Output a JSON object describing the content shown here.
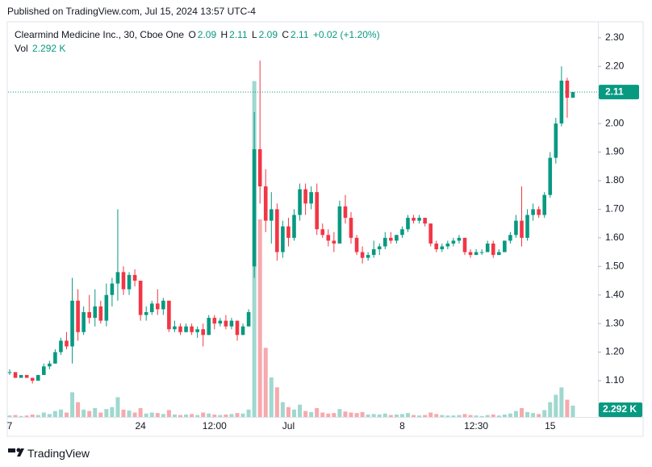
{
  "published": "Published on TradingView.com, Jul 15, 2024 13:57 UTC-4",
  "brand": "TradingView",
  "chart_data": {
    "type": "candlestick",
    "title": "Clearmind Medicine Inc., 30, Cboe One",
    "ohlc_labels": [
      "O",
      "H",
      "L",
      "C"
    ],
    "change_label": "+0.02 (+1.20%)",
    "volume_name": "Vol",
    "volume_label": "2.292 K",
    "up_color": "#089981",
    "down_color": "#f23645",
    "volume_up_color": "#9fd8cf",
    "volume_down_color": "#f7a9ae",
    "ylim": [
      0.973,
      2.356
    ],
    "yticks": [
      {
        "value": 1.1,
        "label": "1.10"
      },
      {
        "value": 1.2,
        "label": "1.20"
      },
      {
        "value": 1.3,
        "label": "1.30"
      },
      {
        "value": 1.4,
        "label": "1.40"
      },
      {
        "value": 1.5,
        "label": "1.50"
      },
      {
        "value": 1.6,
        "label": "1.60"
      },
      {
        "value": 1.7,
        "label": "1.70"
      },
      {
        "value": 1.8,
        "label": "1.80"
      },
      {
        "value": 1.9,
        "label": "1.90"
      },
      {
        "value": 2.0,
        "label": "2.00"
      },
      {
        "value": 2.1,
        "label": "2.10"
      },
      {
        "value": 2.2,
        "label": "2.20"
      },
      {
        "value": 2.3,
        "label": "2.30"
      }
    ],
    "vlim": [
      0,
      80000
    ],
    "categories": [
      "7",
      null,
      null,
      null,
      null,
      null,
      null,
      null,
      null,
      null,
      null,
      null,
      null,
      null,
      null,
      null,
      null,
      null,
      null,
      null,
      null,
      null,
      null,
      "24",
      null,
      null,
      null,
      null,
      null,
      null,
      null,
      null,
      null,
      null,
      null,
      null,
      "12:00",
      null,
      null,
      null,
      null,
      null,
      null,
      null,
      null,
      null,
      null,
      null,
      null,
      "Jul",
      null,
      null,
      null,
      null,
      null,
      null,
      null,
      null,
      null,
      null,
      null,
      null,
      null,
      null,
      null,
      null,
      null,
      null,
      null,
      "8",
      null,
      null,
      null,
      null,
      null,
      null,
      null,
      null,
      null,
      null,
      null,
      null,
      "12:30",
      null,
      null,
      null,
      null,
      null,
      null,
      null,
      null,
      null,
      null,
      null,
      null,
      "15",
      null,
      null,
      null,
      null
    ],
    "series": {
      "open": [
        1.13,
        1.13,
        1.11,
        1.12,
        1.11,
        1.1,
        1.12,
        1.15,
        1.16,
        1.2,
        1.24,
        1.22,
        1.38,
        1.27,
        1.34,
        1.32,
        1.36,
        1.31,
        1.4,
        1.44,
        1.48,
        1.42,
        1.47,
        1.45,
        1.33,
        1.34,
        1.37,
        1.35,
        1.38,
        1.28,
        1.29,
        1.27,
        1.29,
        1.27,
        1.28,
        1.26,
        1.32,
        1.3,
        1.31,
        1.29,
        1.31,
        1.26,
        1.29,
        1.5,
        1.91,
        1.78,
        1.66,
        1.7,
        1.55,
        1.64,
        1.6,
        1.68,
        1.77,
        1.72,
        1.76,
        1.63,
        1.61,
        1.59,
        1.58,
        1.71,
        1.67,
        1.6,
        1.55,
        1.53,
        1.54,
        1.56,
        1.57,
        1.6,
        1.59,
        1.61,
        1.63,
        1.67,
        1.66,
        1.67,
        1.65,
        1.58,
        1.56,
        1.57,
        1.58,
        1.59,
        1.6,
        1.55,
        1.54,
        1.55,
        1.55,
        1.58,
        1.54,
        1.55,
        1.59,
        1.61,
        1.66,
        1.6,
        1.68,
        1.7,
        1.68,
        1.75,
        1.88,
        2.0,
        2.15,
        2.09
      ],
      "high": [
        1.14,
        1.13,
        1.12,
        1.12,
        1.11,
        1.12,
        1.16,
        1.17,
        1.21,
        1.25,
        1.27,
        1.46,
        1.42,
        1.36,
        1.4,
        1.42,
        1.38,
        1.44,
        1.46,
        1.7,
        1.5,
        1.48,
        1.49,
        1.45,
        1.36,
        1.38,
        1.42,
        1.39,
        1.38,
        1.31,
        1.3,
        1.3,
        1.3,
        1.29,
        1.3,
        1.33,
        1.33,
        1.32,
        1.33,
        1.32,
        1.31,
        1.3,
        1.35,
        2.04,
        2.22,
        1.84,
        1.76,
        1.72,
        1.66,
        1.67,
        1.7,
        1.79,
        1.79,
        1.78,
        1.79,
        1.65,
        1.63,
        1.62,
        1.73,
        1.75,
        1.69,
        1.61,
        1.57,
        1.55,
        1.59,
        1.58,
        1.62,
        1.62,
        1.61,
        1.64,
        1.68,
        1.68,
        1.68,
        1.67,
        1.65,
        1.59,
        1.58,
        1.59,
        1.6,
        1.61,
        1.6,
        1.56,
        1.56,
        1.56,
        1.59,
        1.59,
        1.56,
        1.59,
        1.62,
        1.68,
        1.78,
        1.7,
        1.72,
        1.71,
        1.76,
        1.9,
        2.02,
        2.2,
        2.16,
        2.11
      ],
      "low": [
        1.12,
        1.11,
        1.11,
        1.11,
        1.09,
        1.1,
        1.12,
        1.14,
        1.16,
        1.19,
        1.21,
        1.16,
        1.24,
        1.26,
        1.3,
        1.29,
        1.3,
        1.29,
        1.36,
        1.38,
        1.4,
        1.4,
        1.43,
        1.31,
        1.31,
        1.33,
        1.33,
        1.33,
        1.27,
        1.27,
        1.26,
        1.27,
        1.26,
        1.25,
        1.22,
        1.26,
        1.28,
        1.29,
        1.28,
        1.28,
        1.24,
        1.26,
        1.29,
        1.46,
        1.72,
        1.62,
        1.58,
        1.52,
        1.53,
        1.57,
        1.59,
        1.66,
        1.68,
        1.7,
        1.61,
        1.6,
        1.57,
        1.55,
        1.58,
        1.65,
        1.58,
        1.54,
        1.51,
        1.52,
        1.53,
        1.54,
        1.56,
        1.58,
        1.58,
        1.6,
        1.62,
        1.65,
        1.65,
        1.64,
        1.57,
        1.55,
        1.55,
        1.56,
        1.57,
        1.58,
        1.54,
        1.53,
        1.54,
        1.54,
        1.55,
        1.53,
        1.54,
        1.55,
        1.58,
        1.6,
        1.57,
        1.59,
        1.66,
        1.67,
        1.67,
        1.74,
        1.86,
        1.99,
        2.02,
        2.09
      ],
      "close": [
        1.13,
        1.11,
        1.12,
        1.11,
        1.1,
        1.12,
        1.15,
        1.16,
        1.2,
        1.24,
        1.22,
        1.38,
        1.27,
        1.34,
        1.32,
        1.36,
        1.31,
        1.4,
        1.44,
        1.48,
        1.42,
        1.47,
        1.45,
        1.33,
        1.34,
        1.37,
        1.35,
        1.38,
        1.28,
        1.29,
        1.27,
        1.29,
        1.27,
        1.28,
        1.26,
        1.32,
        1.3,
        1.31,
        1.29,
        1.31,
        1.26,
        1.29,
        1.34,
        1.91,
        1.78,
        1.66,
        1.7,
        1.55,
        1.64,
        1.6,
        1.68,
        1.77,
        1.72,
        1.76,
        1.63,
        1.61,
        1.59,
        1.58,
        1.71,
        1.67,
        1.6,
        1.55,
        1.53,
        1.54,
        1.56,
        1.57,
        1.6,
        1.59,
        1.61,
        1.63,
        1.67,
        1.66,
        1.67,
        1.65,
        1.58,
        1.56,
        1.57,
        1.58,
        1.59,
        1.6,
        1.55,
        1.54,
        1.55,
        1.55,
        1.58,
        1.54,
        1.55,
        1.59,
        1.61,
        1.66,
        1.6,
        1.68,
        1.7,
        1.68,
        1.75,
        1.88,
        2.0,
        2.15,
        2.09,
        2.11
      ],
      "volume": [
        300,
        400,
        200,
        300,
        500,
        400,
        900,
        600,
        1200,
        1500,
        900,
        5000,
        3000,
        1500,
        1200,
        1800,
        900,
        1600,
        2000,
        4000,
        1500,
        1300,
        900,
        1800,
        700,
        900,
        800,
        600,
        1400,
        500,
        400,
        500,
        600,
        400,
        900,
        700,
        500,
        400,
        500,
        600,
        800,
        700,
        1500,
        68000,
        40000,
        14000,
        8000,
        6000,
        3000,
        2000,
        1500,
        2500,
        1200,
        1000,
        1800,
        900,
        700,
        800,
        1600,
        1100,
        900,
        800,
        1000,
        500,
        600,
        500,
        700,
        400,
        500,
        600,
        800,
        400,
        300,
        400,
        900,
        600,
        400,
        300,
        300,
        400,
        600,
        400,
        300,
        200,
        400,
        500,
        300,
        500,
        700,
        1200,
        1800,
        1000,
        800,
        600,
        1400,
        3000,
        4500,
        6000,
        3500,
        2292
      ]
    }
  }
}
